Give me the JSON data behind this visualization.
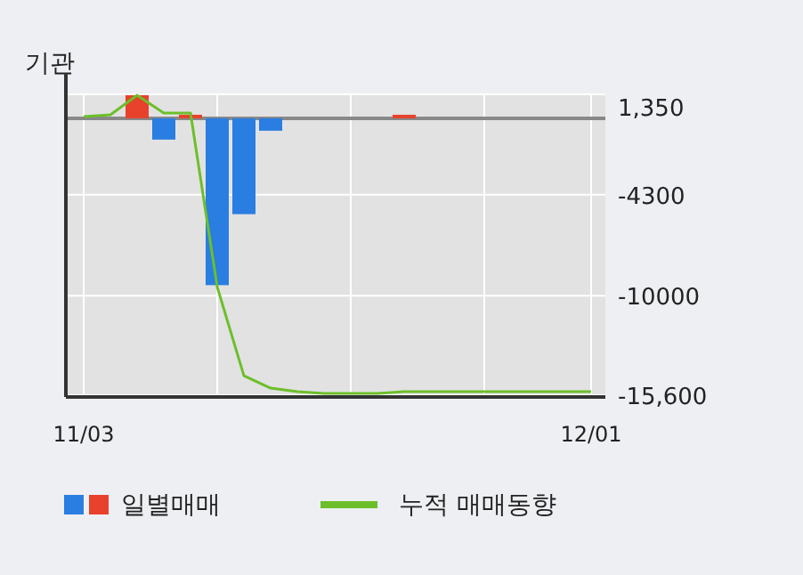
{
  "chart_data": {
    "type": "bar",
    "title": "기관",
    "categories": [
      "11/03",
      null,
      null,
      null,
      null,
      null,
      null,
      null,
      null,
      null,
      null,
      null,
      null,
      null,
      null,
      null,
      null,
      null,
      null,
      "12/01"
    ],
    "series": [
      {
        "name": "일별매매",
        "colors": [
          "#e8412c",
          "#e8412c",
          "#e8412c",
          "#2a7de1",
          "#e8412c",
          "#2a7de1",
          "#2a7de1",
          "#2a7de1",
          "#e8412c",
          "#e8412c",
          "#e8412c",
          "#e8412c",
          "#e8412c",
          "#e8412c",
          "#e8412c",
          "#e8412c",
          "#e8412c",
          "#e8412c",
          "#e8412c",
          "#e8412c"
        ],
        "values": [
          null,
          null,
          1300,
          -1200,
          200,
          -9400,
          -5400,
          -700,
          null,
          null,
          null,
          null,
          200,
          null,
          null,
          null,
          null,
          null,
          null,
          null
        ]
      },
      {
        "name": "누적 매매동향",
        "type": "line",
        "color": "#6cbf2a",
        "values": [
          100,
          200,
          1300,
          300,
          300,
          -9500,
          -14500,
          -15200,
          -15400,
          -15500,
          -15500,
          -15500,
          -15400,
          -15400,
          -15400,
          -15400,
          -15400,
          -15400,
          -15400,
          -15400
        ]
      }
    ],
    "ylim": [
      -15600,
      1350
    ],
    "yticks": [
      {
        "value": 1350,
        "label": "1,350"
      },
      {
        "value": -4300,
        "label": "-4300"
      },
      {
        "value": -10000,
        "label": "-10000"
      },
      {
        "value": -15600,
        "label": "-15,600"
      }
    ],
    "ref_lines": [
      {
        "axis": "y",
        "value": 0,
        "color": "#888888"
      }
    ],
    "grid": true,
    "legend": "bottom"
  }
}
